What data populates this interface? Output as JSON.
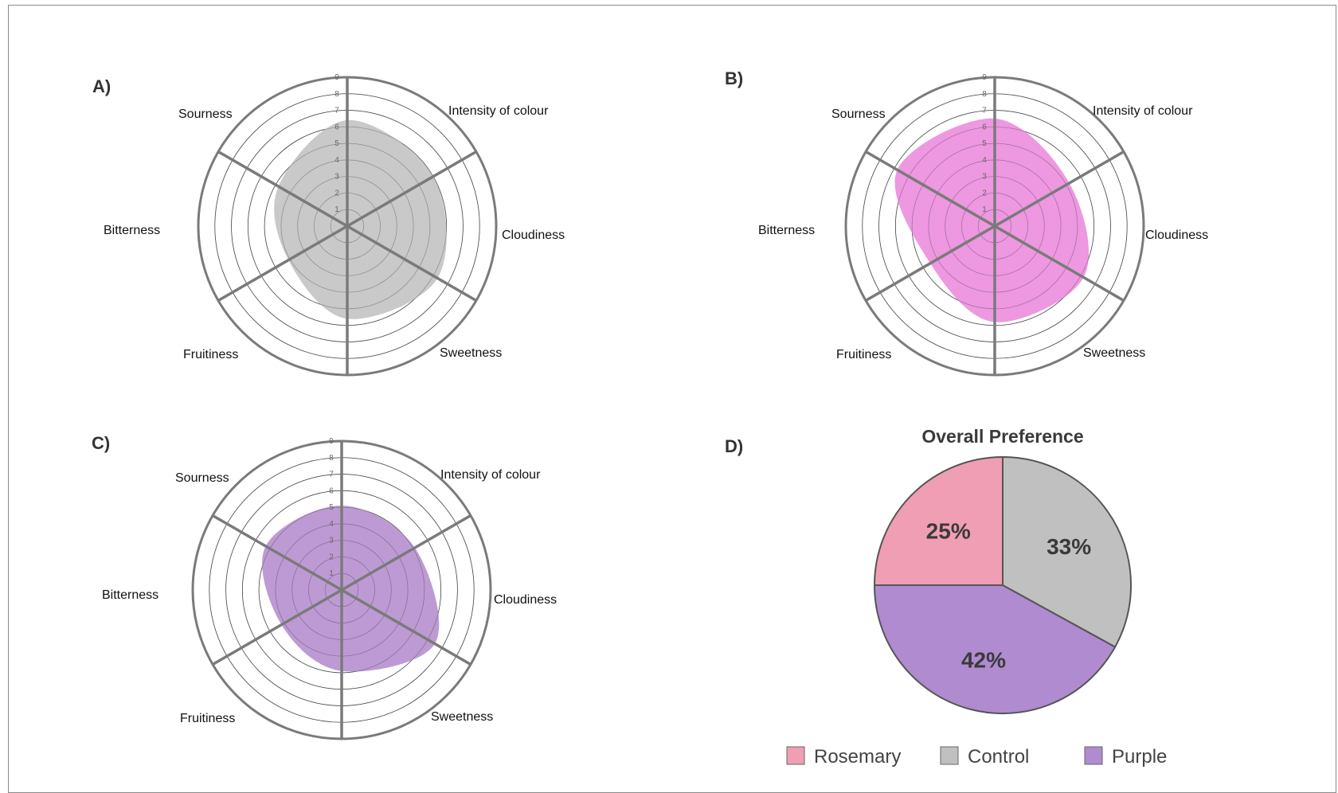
{
  "chart_data": [
    {
      "panel": "A)",
      "type": "radar",
      "axes": [
        "Intensity of colour",
        "Cloudiness",
        "Sweetness",
        "Fruitiness",
        "Bitterness",
        "Sourness"
      ],
      "ticks": [
        "1",
        "2",
        "3",
        "4",
        "5",
        "6",
        "7",
        "8",
        "9"
      ],
      "range": [
        0,
        9
      ],
      "series": [
        {
          "values": [
            6.4,
            6.0,
            6.3,
            5.6,
            4.1,
            4.8
          ],
          "color": "#c4c4c4"
        }
      ]
    },
    {
      "panel": "B)",
      "type": "radar",
      "axes": [
        "Intensity of colour",
        "Cloudiness",
        "Sweetness",
        "Fruitiness",
        "Bitterness",
        "Sourness"
      ],
      "ticks": [
        "1",
        "2",
        "3",
        "4",
        "5",
        "6",
        "7",
        "8",
        "9"
      ],
      "range": [
        0,
        9
      ],
      "series": [
        {
          "values": [
            6.5,
            5.2,
            6.2,
            5.8,
            4.5,
            6.8
          ],
          "color": "#ec8fde"
        }
      ]
    },
    {
      "panel": "C)",
      "type": "radar",
      "axes": [
        "Intensity of colour",
        "Cloudiness",
        "Sweetness",
        "Fruitiness",
        "Bitterness",
        "Sourness"
      ],
      "ticks": [
        "1",
        "2",
        "3",
        "4",
        "5",
        "6",
        "7",
        "8",
        "9"
      ],
      "range": [
        0,
        9
      ],
      "series": [
        {
          "values": [
            5.1,
            5.1,
            6.5,
            4.9,
            4.2,
            5.3
          ],
          "color": "#b891d0"
        }
      ]
    },
    {
      "panel": "D)",
      "type": "pie",
      "title": "Overall Preference",
      "slices": [
        {
          "name": "Control",
          "value": 33,
          "label": "33%",
          "color": "#c0c0c0"
        },
        {
          "name": "Purple",
          "value": 42,
          "label": "42%",
          "color": "#b08bd0"
        },
        {
          "name": "Rosemary",
          "value": 25,
          "label": "25%",
          "color": "#f09eb3"
        }
      ],
      "legend": [
        "Rosemary",
        "Control",
        "Purple"
      ]
    }
  ]
}
